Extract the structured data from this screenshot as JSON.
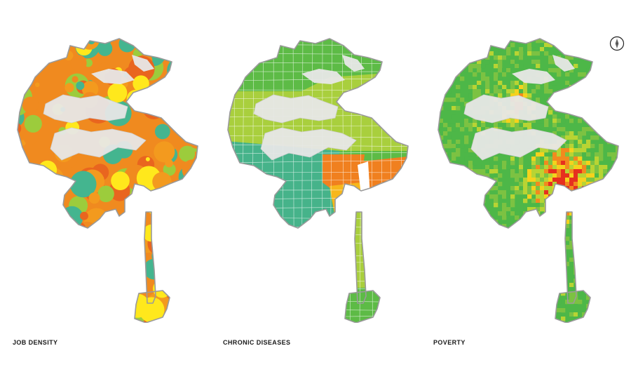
{
  "maps": [
    {
      "id": "job",
      "caption": "JOB DENSITY",
      "palette": [
        "#f08a1f",
        "#ffe81c",
        "#9ccc3c",
        "#44b58f",
        "#f39a1e",
        "#e9651f"
      ],
      "grid": false
    },
    {
      "id": "chronic",
      "caption": "CHRONIC DISEASES",
      "palette": [
        "#5dbb46",
        "#a9cf3d",
        "#46b38a",
        "#f0801f",
        "#f7b71c",
        "#e23a24"
      ],
      "grid": true
    },
    {
      "id": "poverty",
      "caption": "POVERTY",
      "palette": [
        "#4db748",
        "#7cc242",
        "#b8d433",
        "#f5d21c",
        "#f28a1e",
        "#e6301f"
      ],
      "grid": false
    }
  ],
  "colors": {
    "outline": "#9a9a9a",
    "hills": "#e7e7e7",
    "caption": "#1a1a1a",
    "grid": "#ffffff"
  },
  "icons": {
    "north": "north-arrow-icon"
  }
}
